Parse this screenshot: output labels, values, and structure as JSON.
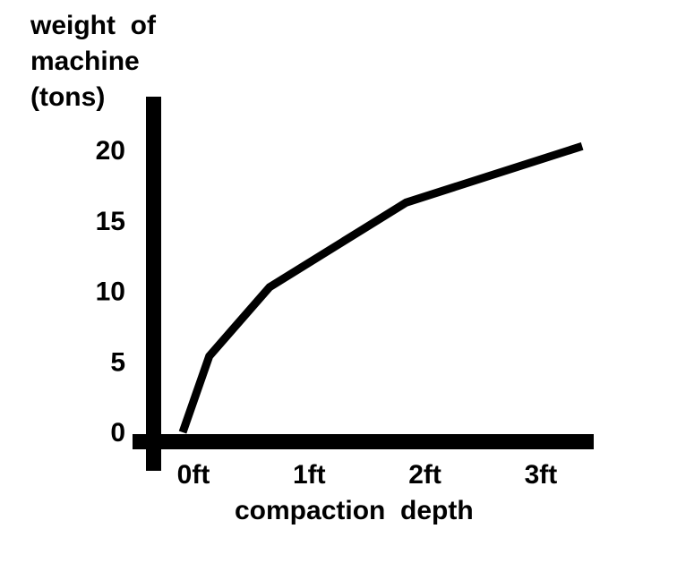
{
  "chart_data": {
    "type": "line",
    "ylabel_lines": [
      "weight  of",
      "machine",
      "(tons)"
    ],
    "xlabel": "compaction  depth",
    "x": [
      0.0,
      0.23,
      0.75,
      1.93,
      3.45
    ],
    "y": [
      0,
      5.4,
      10.3,
      16.3,
      20.3
    ],
    "xlim": [
      -0.2,
      3.6
    ],
    "ylim": [
      -0.4,
      24
    ],
    "x_ticks": [
      0,
      1,
      2,
      3
    ],
    "x_tick_labels": [
      "0ft",
      "1ft",
      "2ft",
      "3ft"
    ],
    "y_ticks": [
      0,
      5,
      10,
      15,
      20
    ],
    "y_tick_labels": [
      "0",
      "5",
      "10",
      "15",
      "20"
    ],
    "grid": false,
    "line_color": "#000000",
    "axis_color": "#000000"
  }
}
